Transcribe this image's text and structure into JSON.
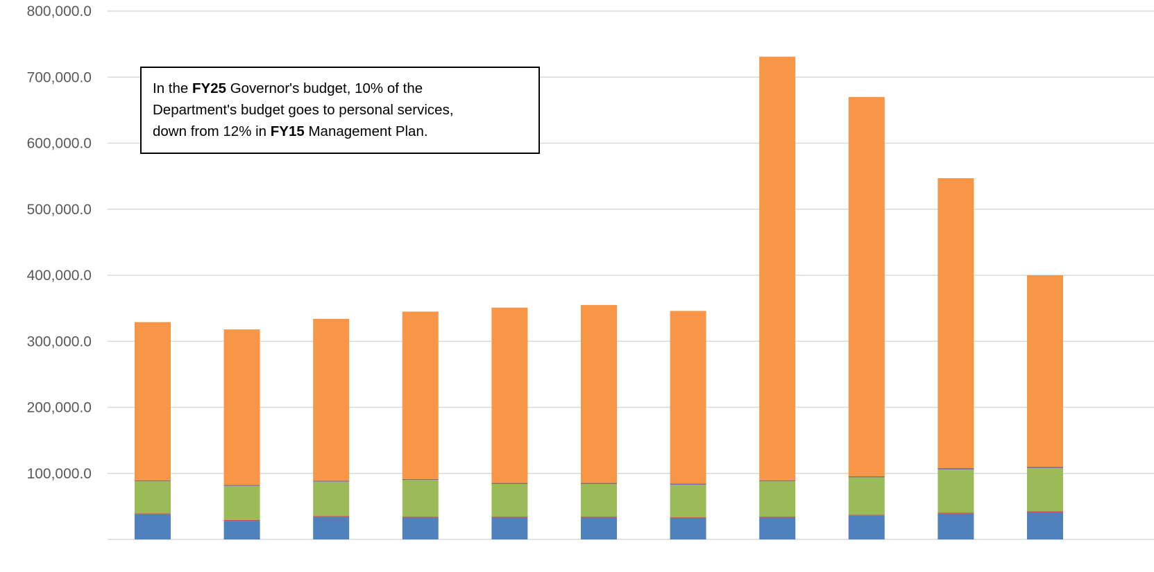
{
  "chart_data": {
    "type": "bar",
    "stacked": true,
    "title": "",
    "xlabel": "",
    "ylabel": "",
    "ylim": [
      0,
      800000
    ],
    "yticks": [
      100000,
      200000,
      300000,
      400000,
      500000,
      600000,
      700000,
      800000
    ],
    "ytick_labels": [
      "100,000.0",
      "200,000.0",
      "300,000.0",
      "400,000.0",
      "500,000.0",
      "600,000.0",
      "700,000.0",
      "800,000.0"
    ],
    "grid": true,
    "categories": [
      "",
      "",
      "",
      "",
      "",
      "",
      "",
      "",
      "",
      "",
      ""
    ],
    "series": [
      {
        "color": "#4f81bd",
        "values": [
          38000,
          28000,
          34000,
          33000,
          33000,
          33000,
          32000,
          33000,
          36000,
          39000,
          41000
        ]
      },
      {
        "color": "#c0504d",
        "values": [
          1500,
          1500,
          1500,
          1500,
          1500,
          1500,
          1500,
          1500,
          1500,
          1500,
          1500
        ]
      },
      {
        "color": "#9bbb59",
        "values": [
          48500,
          51500,
          52000,
          55500,
          49500,
          49500,
          49500,
          53500,
          56500,
          65500,
          65500
        ]
      },
      {
        "color": "#8064a2",
        "values": [
          1500,
          1500,
          1500,
          1500,
          1500,
          1500,
          1500,
          1500,
          1500,
          2000,
          2000
        ]
      },
      {
        "color": "#f79646",
        "values": [
          239500,
          235500,
          245000,
          253500,
          265500,
          269500,
          261500,
          641500,
          574500,
          439000,
          290000
        ]
      }
    ]
  },
  "annotation": {
    "line1_a": "In the ",
    "line1_bold": "FY25",
    "line1_b": " Governor's budget, 10% of the",
    "line2": "Department's budget goes to personal services,",
    "line3_a": "down from 12% in ",
    "line3_bold": "FY15",
    "line3_b": " Management Plan."
  }
}
